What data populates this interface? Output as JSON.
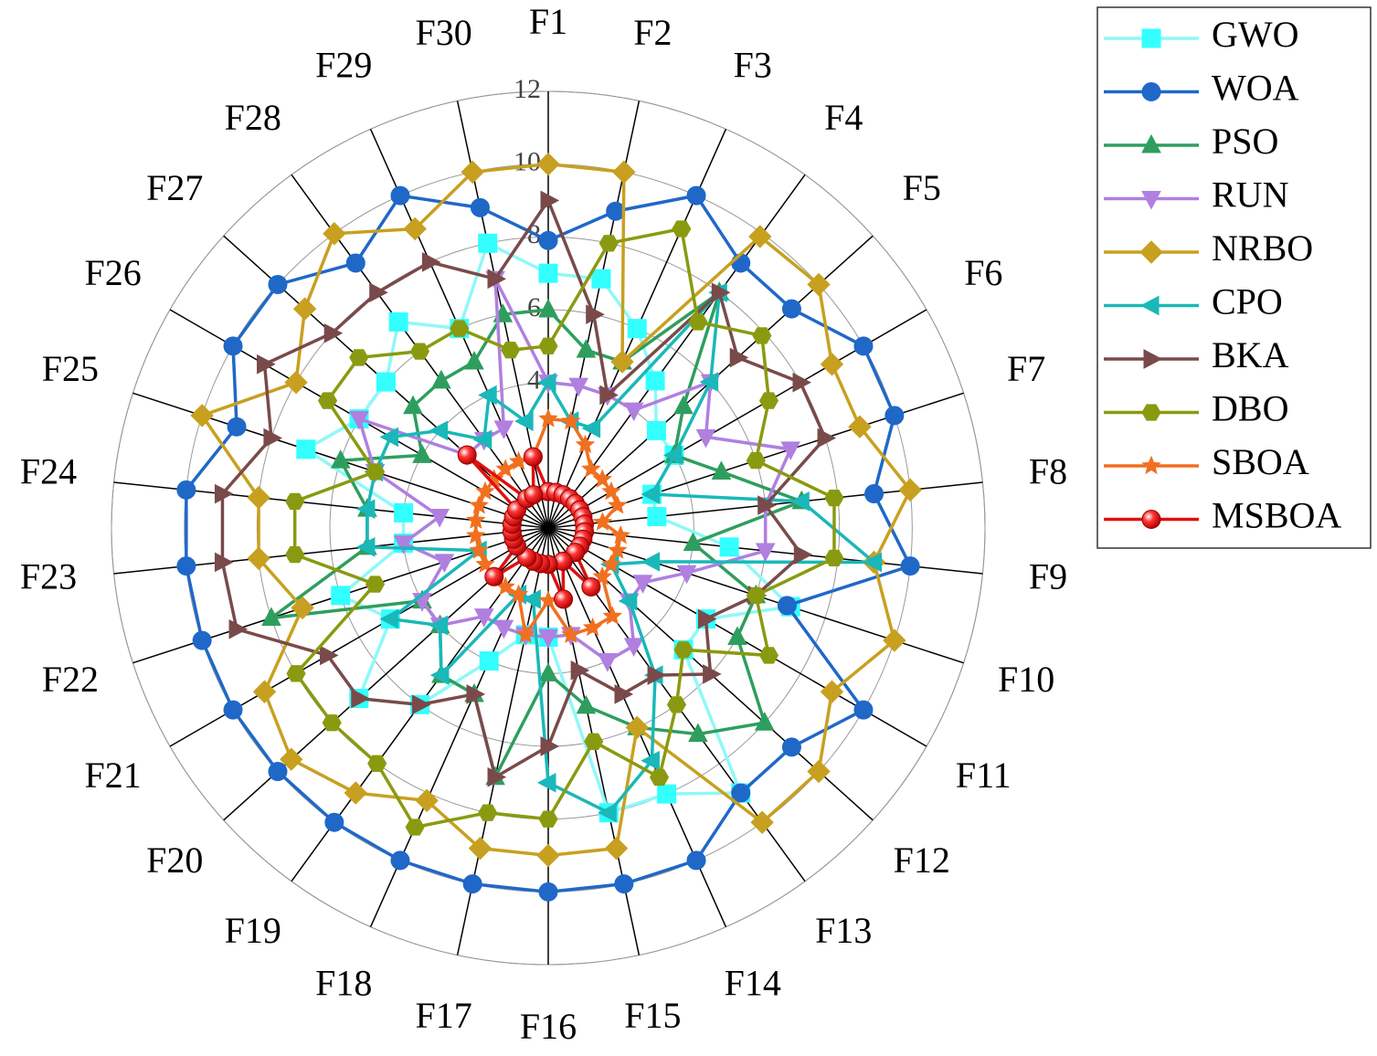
{
  "chart_data": {
    "type": "radar",
    "categories": [
      "F1",
      "F2",
      "F3",
      "F4",
      "F5",
      "F6",
      "F7",
      "F8",
      "F9",
      "F10",
      "F11",
      "F12",
      "F13",
      "F14",
      "F15",
      "F16",
      "F17",
      "F18",
      "F19",
      "F20",
      "F21",
      "F22",
      "F23",
      "F24",
      "F25",
      "F26",
      "F27",
      "F28",
      "F29",
      "F30"
    ],
    "ylim": [
      0,
      12
    ],
    "yticks": [
      4,
      6,
      8,
      10,
      12
    ],
    "grid": true,
    "legend": "upper-right",
    "series": [
      {
        "name": "GWO",
        "color": "#33ffff",
        "marker": "square",
        "values": [
          7,
          7,
          6,
          5,
          4,
          4,
          3,
          3,
          5,
          7,
          5,
          5,
          9,
          8,
          8,
          3,
          3,
          4,
          6,
          7,
          5,
          6,
          4,
          4,
          7,
          6,
          6,
          7,
          6,
          8
        ]
      },
      {
        "name": "WOA",
        "color": "#1f68c8",
        "marker": "circle",
        "values": [
          7.9,
          8.9,
          10,
          9,
          9,
          10,
          10,
          9,
          10,
          6.9,
          10,
          9,
          9,
          10,
          10,
          10,
          10,
          10,
          10,
          10,
          10,
          10,
          10,
          10,
          9,
          10,
          10,
          9,
          10,
          9
        ]
      },
      {
        "name": "PSO",
        "color": "#2e9e5e",
        "marker": "triangle-up",
        "values": [
          6,
          5,
          5,
          8,
          5,
          4,
          5,
          7,
          4,
          6,
          6,
          8,
          7,
          6,
          5,
          4,
          7,
          5,
          5,
          4,
          4,
          8,
          5,
          5,
          6,
          4,
          5,
          5,
          5,
          6
        ]
      },
      {
        "name": "RUN",
        "color": "#b07fe0",
        "marker": "triangle-down",
        "values": [
          4,
          4,
          4,
          4,
          6,
          5,
          7,
          6,
          6,
          4,
          3,
          3,
          4,
          4,
          3,
          3,
          3,
          3,
          3,
          4,
          4,
          3,
          4,
          3,
          5,
          6,
          3,
          3,
          3,
          7
        ]
      },
      {
        "name": "NRBO",
        "color": "#c8a020",
        "marker": "diamond",
        "values": [
          10,
          10,
          5,
          9.9,
          10,
          9,
          9,
          10,
          9,
          10,
          9,
          10,
          10,
          6,
          9,
          9,
          9,
          8.2,
          9,
          9.5,
          9,
          7.1,
          8,
          8,
          10,
          8,
          9,
          10,
          9,
          10
        ]
      },
      {
        "name": "CPO",
        "color": "#1ab8b8",
        "marker": "triangle-left",
        "values": [
          4,
          3,
          3,
          8,
          6,
          4,
          3,
          7,
          9,
          3,
          2,
          3,
          5,
          7,
          8,
          7,
          2,
          2,
          5,
          4,
          5,
          2,
          5,
          5,
          5,
          5,
          4,
          3,
          4,
          3
        ]
      },
      {
        "name": "BKA",
        "color": "#7a4a4a",
        "marker": "triangle-right",
        "values": [
          9,
          6,
          4,
          8,
          7,
          8,
          8,
          6,
          7,
          6,
          5,
          6,
          5,
          5,
          4,
          6,
          7,
          5,
          6,
          7,
          7,
          9,
          9,
          9,
          8,
          9,
          8,
          8,
          8,
          7
        ]
      },
      {
        "name": "DBO",
        "color": "#8a9a10",
        "marker": "hexagon",
        "values": [
          5,
          8,
          9,
          7,
          7.9,
          7,
          6,
          7.9,
          7.9,
          6,
          7,
          5,
          6,
          7.5,
          6,
          8,
          8,
          9,
          8,
          8,
          8,
          5,
          7,
          7,
          5,
          7,
          7,
          6,
          6,
          5
        ]
      },
      {
        "name": "SBOA",
        "color": "#f07020",
        "marker": "star",
        "values": [
          3,
          3,
          2.5,
          2,
          2,
          2,
          2,
          1.5,
          2,
          2,
          2,
          2,
          3,
          3,
          3,
          2,
          3,
          2,
          2,
          2,
          2,
          2,
          2,
          2,
          2,
          2,
          2,
          2,
          2,
          2
        ]
      },
      {
        "name": "MSBOA",
        "color": "#e01010",
        "marker": "ball",
        "values": [
          1,
          1,
          1,
          1,
          1,
          1,
          1,
          1,
          1,
          1,
          1,
          1,
          2,
          1,
          2,
          1,
          1,
          1,
          1,
          2,
          1,
          1,
          1,
          1,
          1,
          1,
          3,
          1,
          1,
          2
        ]
      }
    ]
  }
}
